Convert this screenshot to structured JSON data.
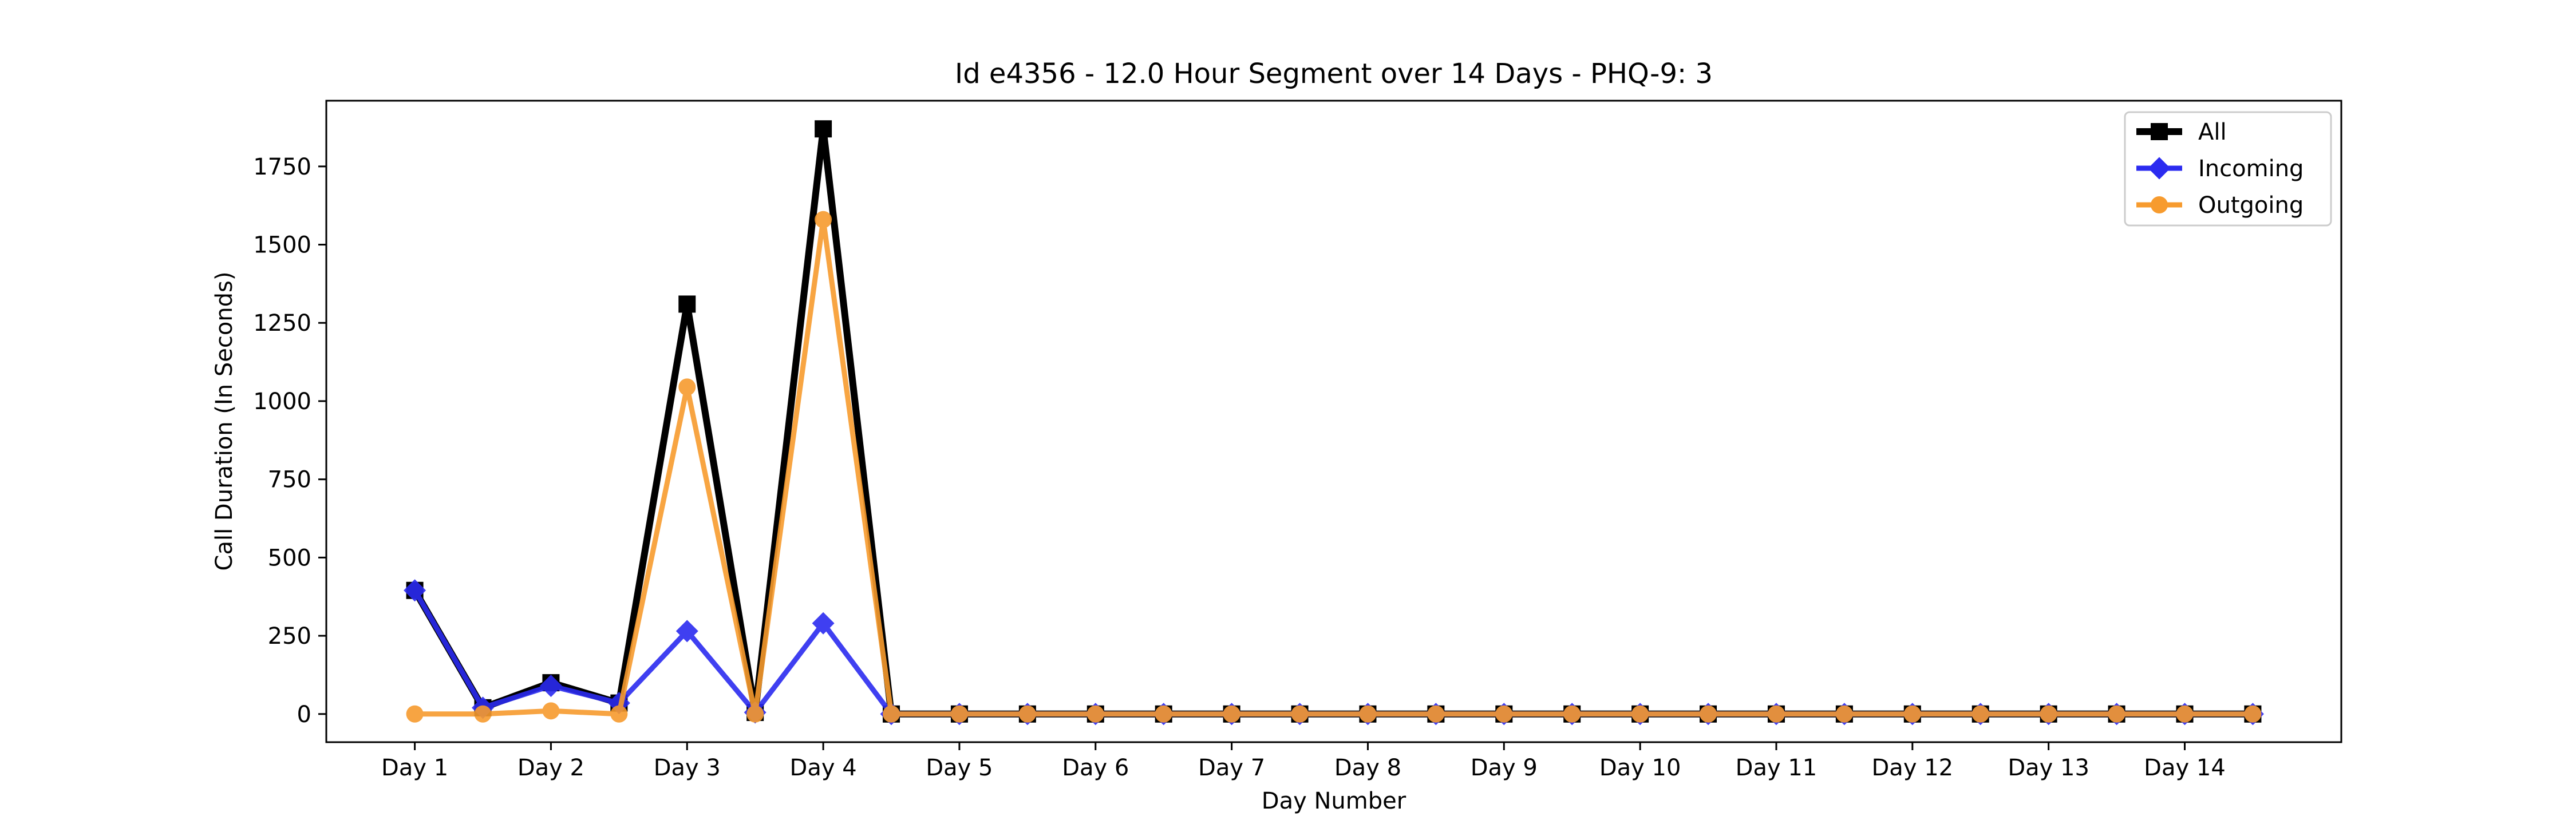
{
  "chart_data": {
    "type": "line",
    "title": "Id e4356 - 12.0 Hour Segment over 14 Days - PHQ-9: 3",
    "xlabel": "Day Number",
    "ylabel": "Call Duration (In Seconds)",
    "categories": [
      "Day 1",
      "Day 2",
      "Day 3",
      "Day 4",
      "Day 5",
      "Day 6",
      "Day 7",
      "Day 8",
      "Day 9",
      "Day 10",
      "Day 11",
      "Day 12",
      "Day 13",
      "Day 14"
    ],
    "x": [
      1,
      1.5,
      2,
      2.5,
      3,
      3.5,
      4,
      4.5,
      5,
      5.5,
      6,
      6.5,
      7,
      7.5,
      8,
      8.5,
      9,
      9.5,
      10,
      10.5,
      11,
      11.5,
      12,
      12.5,
      13,
      13.5,
      14,
      14.5
    ],
    "xlim": [
      0.35,
      15.15
    ],
    "ylim": [
      -90,
      1960
    ],
    "yticks": [
      0,
      250,
      500,
      750,
      1000,
      1250,
      1500,
      1750
    ],
    "legend_position": "top-right",
    "grid": false,
    "series": [
      {
        "name": "All",
        "color": "#000000",
        "marker": "square",
        "values": [
          395,
          20,
          100,
          35,
          1310,
          5,
          1870,
          0,
          0,
          0,
          0,
          0,
          0,
          0,
          0,
          0,
          0,
          0,
          0,
          0,
          0,
          0,
          0,
          0,
          0,
          0,
          0,
          0
        ]
      },
      {
        "name": "Incoming",
        "color": "#2b2bf0",
        "marker": "diamond",
        "values": [
          395,
          20,
          90,
          35,
          265,
          5,
          290,
          0,
          0,
          0,
          0,
          0,
          0,
          0,
          0,
          0,
          0,
          0,
          0,
          0,
          0,
          0,
          0,
          0,
          0,
          0,
          0,
          0
        ]
      },
      {
        "name": "Outgoing",
        "color": "#f79b2e",
        "marker": "circle",
        "values": [
          0,
          0,
          10,
          0,
          1045,
          0,
          1580,
          0,
          0,
          0,
          0,
          0,
          0,
          0,
          0,
          0,
          0,
          0,
          0,
          0,
          0,
          0,
          0,
          0,
          0,
          0,
          0,
          0
        ]
      }
    ]
  }
}
